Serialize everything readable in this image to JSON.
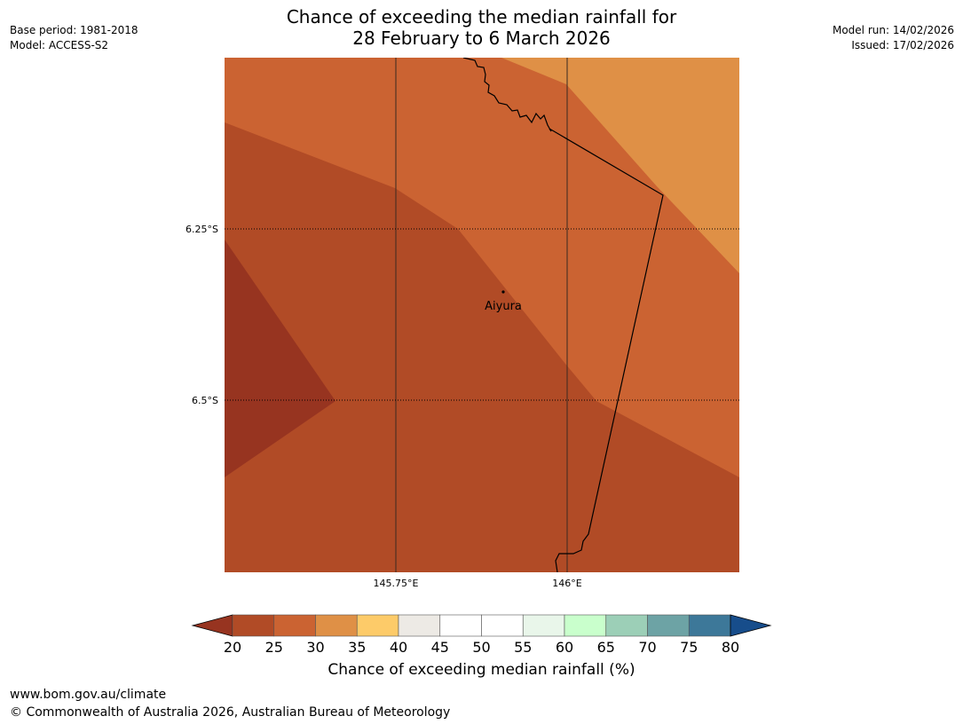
{
  "header": {
    "title_line1": "Chance of exceeding the median rainfall for",
    "title_line2": "28 February to 6 March 2026",
    "base_period": "Base period: 1981-2018",
    "model": "Model: ACCESS-S2",
    "model_run": "Model run: 14/02/2026",
    "issued": "Issued: 17/02/2026"
  },
  "map": {
    "lat_labels": [
      "6.25°S",
      "6.5°S"
    ],
    "lon_labels": [
      "145.75°E",
      "146°E"
    ],
    "places": [
      {
        "name": "Aiyura"
      }
    ]
  },
  "colorbar": {
    "ticks": [
      "20",
      "25",
      "30",
      "35",
      "40",
      "45",
      "50",
      "55",
      "60",
      "65",
      "70",
      "75",
      "80"
    ],
    "colors": [
      "#b14b26",
      "#cb6332",
      "#df9046",
      "#fdcb69",
      "#edeae5",
      "#ffffff",
      "#ffffff",
      "#e9f6ea",
      "#c9ffcc",
      "#9ccfb7",
      "#6da3a5",
      "#3d7899"
    ],
    "under_color": "#973420",
    "over_color": "#174d8b",
    "label": "Chance of exceeding median rainfall (%)"
  },
  "footer": {
    "url": "www.bom.gov.au/climate",
    "copyright": "© Commonwealth of Australia 2026, Australian Bureau of Meteorology"
  }
}
